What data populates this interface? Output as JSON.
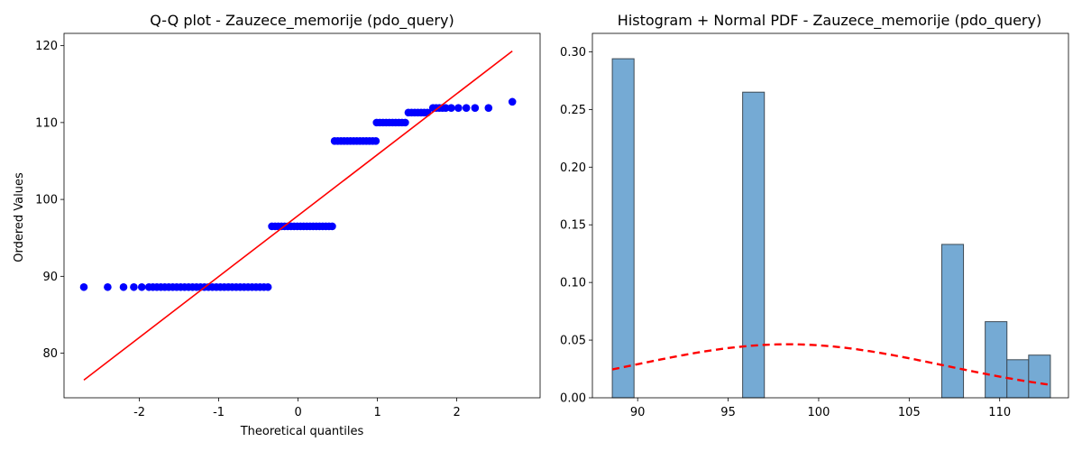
{
  "chart_data": [
    {
      "type": "scatter",
      "title": "Q-Q plot - Zauzece_memorije (pdo_query)",
      "xlabel": "Theoretical quantiles",
      "ylabel": "Ordered Values",
      "xlim": [
        -2.95,
        3.05
      ],
      "ylim": [
        74.2,
        121.6
      ],
      "xticks": [
        -2,
        -1,
        0,
        1,
        2
      ],
      "yticks": [
        80,
        90,
        100,
        110,
        120
      ],
      "grid": false,
      "point_color": "#0000ff",
      "line_color": "#ff0000",
      "fit_line": {
        "x": [
          -2.7,
          2.7
        ],
        "y": [
          76.5,
          119.3
        ]
      },
      "groups": [
        {
          "y": 88.6,
          "x_from": -1.88,
          "x_to": -0.35,
          "step": 0.05,
          "extra_x": [
            -2.7,
            -2.4,
            -2.2,
            -2.07,
            -1.97
          ]
        },
        {
          "y": 96.5,
          "x_from": -0.33,
          "x_to": 0.44,
          "step": 0.04,
          "extra_x": []
        },
        {
          "y": 107.6,
          "x_from": 0.46,
          "x_to": 0.98,
          "step": 0.04,
          "extra_x": []
        },
        {
          "y": 110.0,
          "x_from": 0.99,
          "x_to": 1.37,
          "step": 0.04,
          "extra_x": []
        },
        {
          "y": 111.3,
          "x_from": 1.39,
          "x_to": 1.66,
          "step": 0.04,
          "extra_x": []
        },
        {
          "y": 111.9,
          "x_from": 1.7,
          "x_to": 1.86,
          "step": 0.04,
          "extra_x": [
            1.93,
            2.02,
            2.12,
            2.23,
            2.4
          ]
        },
        {
          "y": 112.7,
          "x_from": 0,
          "x_to": -1,
          "step": 1,
          "extra_x": [
            2.7
          ]
        }
      ]
    },
    {
      "type": "bar",
      "title": "Histogram + Normal PDF - Zauzece_memorije (pdo_query)",
      "xlabel": "",
      "ylabel": "",
      "xlim": [
        87.5,
        113.8
      ],
      "ylim": [
        0,
        0.316
      ],
      "xticks": [
        90,
        95,
        100,
        105,
        110
      ],
      "yticks": [
        "0.00",
        "0.05",
        "0.10",
        "0.15",
        "0.20",
        "0.25",
        "0.30"
      ],
      "grid": false,
      "bar_color": "#75aad4",
      "bar_edge": "#3d4a55",
      "bars": [
        {
          "x0": 88.6,
          "x1": 89.8,
          "value": 0.294
        },
        {
          "x0": 95.8,
          "x1": 97.0,
          "value": 0.265
        },
        {
          "x0": 106.8,
          "x1": 108.0,
          "value": 0.133
        },
        {
          "x0": 109.2,
          "x1": 110.4,
          "value": 0.066
        },
        {
          "x0": 110.4,
          "x1": 111.6,
          "value": 0.033
        },
        {
          "x0": 111.6,
          "x1": 112.8,
          "value": 0.037
        }
      ],
      "pdf_curve": {
        "mean": 98.3,
        "std": 8.6,
        "x_from": 88.6,
        "x_to": 112.8,
        "color": "#ff0000",
        "style": "dashed"
      }
    }
  ]
}
